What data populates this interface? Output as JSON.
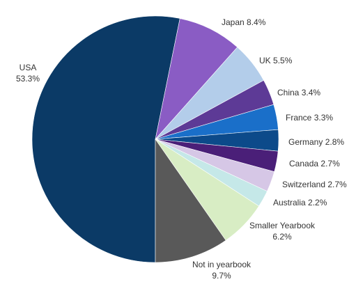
{
  "chart_data": {
    "type": "pie",
    "categories": [
      "USA",
      "Japan",
      "UK",
      "China",
      "France",
      "Germany",
      "Canada",
      "Switzerland",
      "Australia",
      "Smaller Yearbook",
      "Not in yearbook"
    ],
    "values": [
      53.3,
      8.4,
      5.5,
      3.4,
      3.3,
      2.8,
      2.7,
      2.7,
      2.2,
      6.2,
      9.7
    ],
    "value_labels": [
      "53.3%",
      "8.4%",
      "5.5%",
      "3.4%",
      "3.3%",
      "2.8%",
      "2.7%",
      "2.7%",
      "2.2%",
      "6.2%",
      "9.7%"
    ],
    "colors": [
      "#0b3a66",
      "#8a5cc4",
      "#b3cdea",
      "#5d3a96",
      "#1a6fc9",
      "#0c4a8a",
      "#4a1f78",
      "#d6c7e6",
      "#c5e8e8",
      "#d8edc4",
      "#595959"
    ]
  }
}
